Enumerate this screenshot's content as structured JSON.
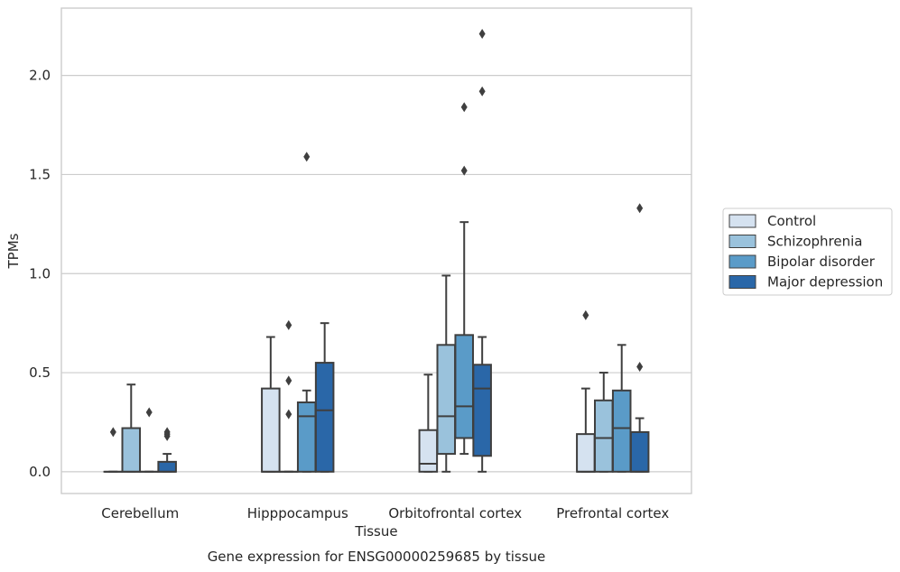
{
  "chart_data": {
    "type": "boxplot",
    "title": "Gene expression for ENSG00000259685 by tissue",
    "xlabel": "Tissue",
    "ylabel": "TPMs",
    "ylim": [
      -0.11,
      2.34
    ],
    "yticks": [
      "0.0",
      "0.5",
      "1.0",
      "1.5",
      "2.0"
    ],
    "ytick_values": [
      0.0,
      0.5,
      1.0,
      1.5,
      2.0
    ],
    "grid": "horizontal",
    "legend_position": "right",
    "categories": [
      "Cerebellum",
      "Hipppocampus",
      "Orbitofrontal cortex",
      "Prefrontal cortex"
    ],
    "series": [
      {
        "name": "Control",
        "color": "#d5e2f0",
        "boxes": [
          {
            "q1": 0.0,
            "median": 0.0,
            "q3": 0.0,
            "whislo": 0.0,
            "whishi": 0.0,
            "fliers": [
              0.2
            ]
          },
          {
            "q1": 0.0,
            "median": 0.0,
            "q3": 0.42,
            "whislo": 0.0,
            "whishi": 0.68,
            "fliers": []
          },
          {
            "q1": 0.0,
            "median": 0.04,
            "q3": 0.21,
            "whislo": 0.0,
            "whishi": 0.49,
            "fliers": []
          },
          {
            "q1": 0.0,
            "median": 0.0,
            "q3": 0.19,
            "whislo": 0.0,
            "whishi": 0.42,
            "fliers": [
              0.79
            ]
          }
        ]
      },
      {
        "name": "Schizophrenia",
        "color": "#9ac2dc",
        "boxes": [
          {
            "q1": 0.0,
            "median": 0.0,
            "q3": 0.22,
            "whislo": 0.0,
            "whishi": 0.44,
            "fliers": []
          },
          {
            "q1": 0.0,
            "median": 0.0,
            "q3": 0.0,
            "whislo": 0.0,
            "whishi": 0.0,
            "fliers": [
              0.29,
              0.46,
              0.74
            ]
          },
          {
            "q1": 0.09,
            "median": 0.28,
            "q3": 0.64,
            "whislo": 0.0,
            "whishi": 0.99,
            "fliers": []
          },
          {
            "q1": 0.0,
            "median": 0.17,
            "q3": 0.36,
            "whislo": 0.0,
            "whishi": 0.5,
            "fliers": []
          }
        ]
      },
      {
        "name": "Bipolar disorder",
        "color": "#5a9bc8",
        "boxes": [
          {
            "q1": 0.0,
            "median": 0.0,
            "q3": 0.0,
            "whislo": 0.0,
            "whishi": 0.0,
            "fliers": [
              0.3
            ]
          },
          {
            "q1": 0.0,
            "median": 0.28,
            "q3": 0.35,
            "whislo": 0.0,
            "whishi": 0.41,
            "fliers": [
              1.59
            ]
          },
          {
            "q1": 0.17,
            "median": 0.33,
            "q3": 0.69,
            "whislo": 0.09,
            "whishi": 1.26,
            "fliers": [
              1.52,
              1.84
            ]
          },
          {
            "q1": 0.0,
            "median": 0.22,
            "q3": 0.41,
            "whislo": 0.0,
            "whishi": 0.64,
            "fliers": []
          }
        ]
      },
      {
        "name": "Major depression",
        "color": "#2a67a8",
        "boxes": [
          {
            "q1": 0.0,
            "median": 0.0,
            "q3": 0.05,
            "whislo": 0.0,
            "whishi": 0.09,
            "fliers": [
              0.18,
              0.19,
              0.2
            ]
          },
          {
            "q1": 0.0,
            "median": 0.31,
            "q3": 0.55,
            "whislo": 0.0,
            "whishi": 0.75,
            "fliers": []
          },
          {
            "q1": 0.08,
            "median": 0.42,
            "q3": 0.54,
            "whislo": 0.0,
            "whishi": 0.68,
            "fliers": [
              1.92,
              2.21
            ]
          },
          {
            "q1": 0.0,
            "median": 0.0,
            "q3": 0.2,
            "whislo": 0.0,
            "whishi": 0.27,
            "fliers": [
              0.53,
              1.33
            ]
          }
        ]
      }
    ]
  }
}
